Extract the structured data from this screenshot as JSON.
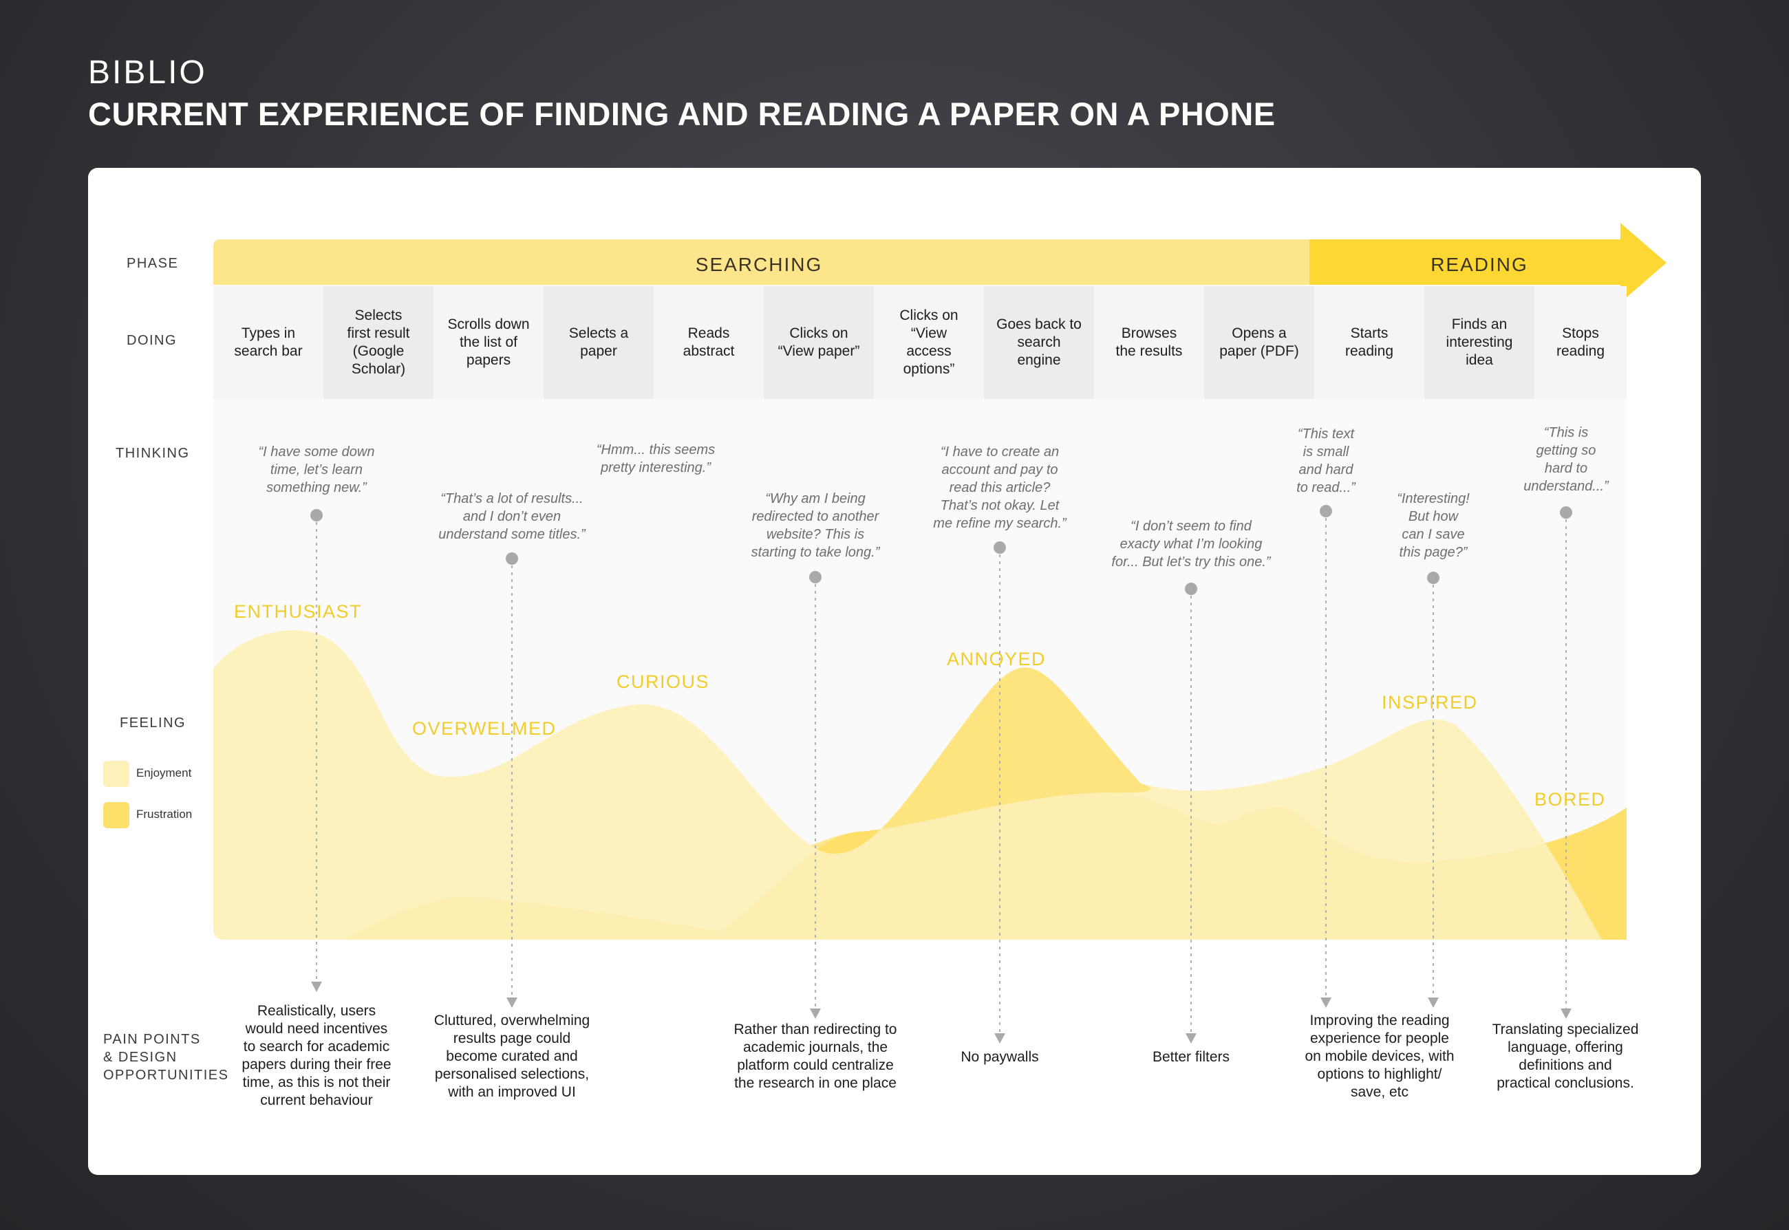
{
  "header": {
    "brand": "BIBLIO",
    "title": "CURRENT EXPERIENCE OF FINDING AND READING A PAPER ON A PHONE"
  },
  "row_labels": {
    "phase": "PHASE",
    "doing": "DOING",
    "thinking": "THINKING",
    "feeling": "FEELING",
    "pain": "PAIN POINTS\n& DESIGN\nOPPORTUNITIES"
  },
  "phases": [
    {
      "label": "SEARCHING",
      "color": "#fce58a"
    },
    {
      "label": "READING",
      "color": "#fdd835"
    }
  ],
  "doing": [
    "Types in\nsearch bar",
    "Selects\nfirst result\n(Google\nScholar)",
    "Scrolls down\nthe list of\npapers",
    "Selects a\npaper",
    "Reads\nabstract",
    "Clicks on\n“View paper”",
    "Clicks on\n“View\naccess\noptions”",
    "Goes back to\nsearch\nengine",
    "Browses\nthe results",
    "Opens a\npaper (PDF)",
    "Starts\nreading",
    "Finds an\ninteresting\nidea",
    "Stops\nreading"
  ],
  "thoughts": [
    "“I have some down\ntime, let’s learn\nsomething new.”",
    "“That’s a lot of results...\nand I don’t even\nunderstand some titles.”",
    "“Hmm... this seems\npretty interesting.”",
    "“Why am I being\nredirected to another\nwebsite? This is\nstarting to take long.”",
    "“I have to create an\naccount and pay to\nread this article?\nThat’s not okay. Let\nme refine my search.”",
    "“I don’t seem to find\nexacty what I’m looking\nfor... But let’s try this one.”",
    "“This text\nis small\nand hard\nto read...”",
    "“Interesting!\nBut how\ncan I save\nthis page?”",
    "“This is\ngetting so\nhard to\nunderstand...”"
  ],
  "emotions": [
    "ENTHUSIAST",
    "OVERWELMED",
    "CURIOUS",
    "ANNOYED",
    "INSPIRED",
    "BORED"
  ],
  "legend": [
    {
      "label": "Enjoyment",
      "color": "#fdf0b8"
    },
    {
      "label": "Frustration",
      "color": "#fddf6a"
    }
  ],
  "pain_points": [
    "Realistically, users\nwould need incentives\nto search for academic\npapers during their free\ntime, as this is not their\ncurrent behaviour",
    "Cluttured, overwhelming\nresults page could\nbecome curated and\npersonalised selections,\nwith an improved UI",
    "Rather than redirecting to\nacademic journals, the\nplatform could centralize\nthe research in one place",
    "No paywalls",
    "Better filters",
    "Improving the reading\nexperience for people\non mobile devices, with\noptions to highlight/\nsave, etc",
    "Translating specialized\nlanguage, offering\ndefinitions and\npractical conclusions."
  ]
}
